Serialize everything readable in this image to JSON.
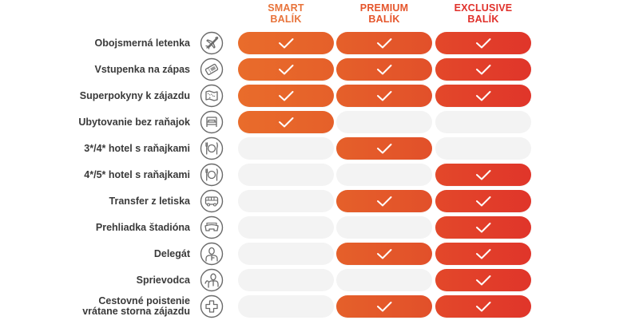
{
  "colors": {
    "smart": [
      "#E96C2B",
      "#E5602A"
    ],
    "premium": [
      "#E5602A",
      "#E2502A"
    ],
    "exclusive": [
      "#E3482A",
      "#E0352A"
    ],
    "empty": "#F3F3F3",
    "label_text": "#3A3A3A",
    "icon_stroke": "#6A6A6A",
    "header_smart": "#E8733A",
    "header_premium": "#E5552B",
    "header_exclusive": "#E0302A"
  },
  "packages": [
    {
      "id": "smart",
      "line1": "SMART",
      "line2": "BALÍK"
    },
    {
      "id": "premium",
      "line1": "PREMIUM",
      "line2": "BALÍK"
    },
    {
      "id": "exclusive",
      "line1": "EXCLUSIVE",
      "line2": "BALÍK"
    }
  ],
  "features": [
    {
      "label": "Obojsmerná letenka",
      "icon": "airplane-icon",
      "smart": true,
      "premium": true,
      "exclusive": true
    },
    {
      "label": "Vstupenka na zápas",
      "icon": "ticket-icon",
      "smart": true,
      "premium": true,
      "exclusive": true
    },
    {
      "label": "Superpokyny k zájazdu",
      "icon": "map-icon",
      "smart": true,
      "premium": true,
      "exclusive": true
    },
    {
      "label": "Ubytovanie bez raňajok",
      "icon": "bed-icon",
      "smart": true,
      "premium": false,
      "exclusive": false
    },
    {
      "label": "3*/4* hotel s raňajkami",
      "icon": "plate-cutlery-icon",
      "smart": false,
      "premium": true,
      "exclusive": false
    },
    {
      "label": "4*/5* hotel s raňajkami",
      "icon": "plate-cutlery-icon",
      "smart": false,
      "premium": false,
      "exclusive": true
    },
    {
      "label": "Transfer z letiska",
      "icon": "bus-icon",
      "smart": false,
      "premium": true,
      "exclusive": true
    },
    {
      "label": "Prehliadka štadióna",
      "icon": "stadium-icon",
      "smart": false,
      "premium": false,
      "exclusive": true
    },
    {
      "label": "Delegát",
      "icon": "delegate-person-icon",
      "smart": false,
      "premium": true,
      "exclusive": true
    },
    {
      "label": "Sprievodca",
      "icon": "guide-person-icon",
      "smart": false,
      "premium": false,
      "exclusive": true
    },
    {
      "label": "Cestovné poistenie\nvrátane storna zájazdu",
      "label_line1": "Cestovné poistenie",
      "label_line2": "vrátane storna zájazdu",
      "icon": "medical-cross-icon",
      "smart": false,
      "premium": true,
      "exclusive": true
    }
  ]
}
